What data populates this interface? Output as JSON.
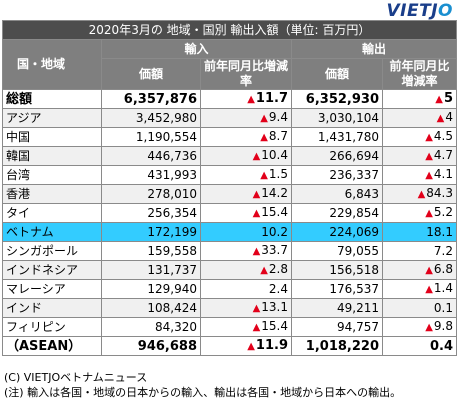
{
  "logo": "VIETJO",
  "title": "2020年3月の 地域・国別 輸出入額（単位: 百万円）",
  "header": {
    "region": "国・地域",
    "import": "輸入",
    "export": "輸出",
    "value": "価額",
    "yoy": "前年同月比増減率"
  },
  "rows": [
    {
      "name": "総額",
      "imp": "6,357,876",
      "imp_chg": "11.7",
      "imp_dir": "up",
      "exp": "6,352,930",
      "exp_chg": "5",
      "exp_dir": "up",
      "style": "bold"
    },
    {
      "name": "アジア",
      "imp": "3,452,980",
      "imp_chg": "9.4",
      "imp_dir": "up",
      "exp": "3,030,104",
      "exp_chg": "4",
      "exp_dir": "up",
      "style": "alt"
    },
    {
      "name": "中国",
      "imp": "1,190,554",
      "imp_chg": "8.7",
      "imp_dir": "up",
      "exp": "1,431,780",
      "exp_chg": "4.5",
      "exp_dir": "up",
      "style": ""
    },
    {
      "name": "韓国",
      "imp": "446,736",
      "imp_chg": "10.4",
      "imp_dir": "up",
      "exp": "266,694",
      "exp_chg": "4.7",
      "exp_dir": "up",
      "style": "alt"
    },
    {
      "name": "台湾",
      "imp": "431,993",
      "imp_chg": "1.5",
      "imp_dir": "up",
      "exp": "236,337",
      "exp_chg": "4.1",
      "exp_dir": "up",
      "style": ""
    },
    {
      "name": "香港",
      "imp": "278,010",
      "imp_chg": "14.2",
      "imp_dir": "up",
      "exp": "6,843",
      "exp_chg": "84.3",
      "exp_dir": "up",
      "style": "alt"
    },
    {
      "name": "タイ",
      "imp": "256,354",
      "imp_chg": "15.4",
      "imp_dir": "up",
      "exp": "229,854",
      "exp_chg": "5.2",
      "exp_dir": "up",
      "style": ""
    },
    {
      "name": "ベトナム",
      "imp": "172,199",
      "imp_chg": "10.2",
      "imp_dir": "",
      "exp": "224,069",
      "exp_chg": "18.1",
      "exp_dir": "",
      "style": "vn"
    },
    {
      "name": "シンガポール",
      "imp": "159,558",
      "imp_chg": "33.7",
      "imp_dir": "up",
      "exp": "79,055",
      "exp_chg": "7.2",
      "exp_dir": "",
      "style": ""
    },
    {
      "name": "インドネシア",
      "imp": "131,737",
      "imp_chg": "2.8",
      "imp_dir": "up",
      "exp": "156,518",
      "exp_chg": "6.8",
      "exp_dir": "up",
      "style": "alt"
    },
    {
      "name": "マレーシア",
      "imp": "129,940",
      "imp_chg": "2.4",
      "imp_dir": "",
      "exp": "176,537",
      "exp_chg": "1.4",
      "exp_dir": "up",
      "style": ""
    },
    {
      "name": "インド",
      "imp": "108,424",
      "imp_chg": "13.1",
      "imp_dir": "up",
      "exp": "49,211",
      "exp_chg": "0.1",
      "exp_dir": "",
      "style": "alt"
    },
    {
      "name": "フィリピン",
      "imp": "84,320",
      "imp_chg": "15.4",
      "imp_dir": "up",
      "exp": "94,757",
      "exp_chg": "9.8",
      "exp_dir": "up",
      "style": ""
    },
    {
      "name": "（ASEAN）",
      "imp": "946,688",
      "imp_chg": "11.9",
      "imp_dir": "up",
      "exp": "1,018,220",
      "exp_chg": "0.4",
      "exp_dir": "",
      "style": "bold"
    }
  ],
  "notes": [
    "(C) VIETJOベトナムニュース",
    "(注) 輸入は各国・地域の日本からの輸入、輸出は各国・地域から日本への輸出。"
  ]
}
